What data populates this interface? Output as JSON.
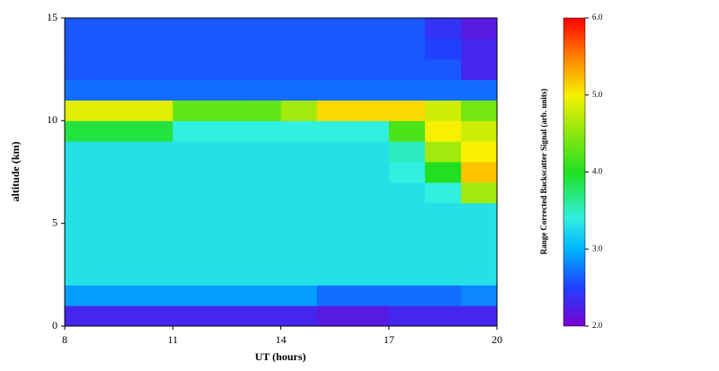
{
  "chart_data": {
    "type": "heatmap",
    "x_label": "UT (hours)",
    "y_label": "altitude (km)",
    "colorbar_label": "Range Corrected Backscatter Signal (arb. units)",
    "x_bins": [
      8,
      9,
      10,
      11,
      12,
      13,
      14,
      15,
      16,
      17,
      18,
      19,
      20
    ],
    "y_bins": [
      0,
      1,
      2,
      3,
      4,
      5,
      6,
      7,
      8,
      9,
      10,
      11,
      12,
      13,
      14,
      15
    ],
    "z": [
      [
        2.3,
        2.3,
        2.3,
        2.3,
        2.3,
        2.3,
        2.3,
        2.2,
        2.2,
        2.3,
        2.3,
        2.3
      ],
      [
        2.9,
        2.9,
        2.9,
        2.9,
        2.9,
        2.9,
        2.9,
        2.7,
        2.7,
        2.7,
        2.7,
        2.8
      ],
      [
        3.3,
        3.3,
        3.3,
        3.3,
        3.3,
        3.3,
        3.3,
        3.3,
        3.3,
        3.3,
        3.3,
        3.3
      ],
      [
        3.3,
        3.3,
        3.3,
        3.3,
        3.3,
        3.3,
        3.3,
        3.3,
        3.3,
        3.3,
        3.3,
        3.3
      ],
      [
        3.3,
        3.3,
        3.3,
        3.3,
        3.3,
        3.3,
        3.3,
        3.3,
        3.3,
        3.3,
        3.3,
        3.3
      ],
      [
        3.3,
        3.3,
        3.3,
        3.3,
        3.3,
        3.3,
        3.3,
        3.3,
        3.3,
        3.3,
        3.3,
        3.3
      ],
      [
        3.3,
        3.3,
        3.3,
        3.3,
        3.3,
        3.3,
        3.3,
        3.3,
        3.3,
        3.3,
        3.4,
        4.6
      ],
      [
        3.3,
        3.3,
        3.3,
        3.3,
        3.3,
        3.3,
        3.3,
        3.3,
        3.3,
        3.4,
        4.0,
        5.2
      ],
      [
        3.3,
        3.3,
        3.3,
        3.3,
        3.3,
        3.3,
        3.3,
        3.3,
        3.3,
        3.5,
        4.6,
        5.0
      ],
      [
        3.9,
        3.9,
        3.9,
        3.4,
        3.4,
        3.4,
        3.4,
        3.4,
        3.4,
        4.2,
        5.0,
        4.8
      ],
      [
        4.9,
        4.9,
        4.9,
        4.3,
        4.3,
        4.3,
        4.6,
        5.1,
        5.1,
        5.1,
        4.8,
        4.4
      ],
      [
        2.7,
        2.7,
        2.7,
        2.7,
        2.7,
        2.7,
        2.7,
        2.7,
        2.7,
        2.7,
        2.7,
        2.7
      ],
      [
        2.6,
        2.6,
        2.6,
        2.6,
        2.6,
        2.6,
        2.6,
        2.6,
        2.6,
        2.6,
        2.6,
        2.3
      ],
      [
        2.6,
        2.6,
        2.6,
        2.6,
        2.6,
        2.6,
        2.6,
        2.6,
        2.6,
        2.6,
        2.5,
        2.3
      ],
      [
        2.6,
        2.6,
        2.6,
        2.6,
        2.6,
        2.6,
        2.6,
        2.6,
        2.6,
        2.6,
        2.4,
        2.2
      ]
    ],
    "xlim": [
      8,
      20
    ],
    "xticks": [
      8,
      11,
      14,
      17,
      20
    ],
    "ylim": [
      0,
      15
    ],
    "yticks": [
      0,
      5,
      10,
      15
    ],
    "zlim": [
      2,
      6
    ],
    "zticks": [
      {
        "value": 2,
        "label": "2.0"
      },
      {
        "value": 3,
        "label": "3.0"
      },
      {
        "value": 4,
        "label": "4.0"
      },
      {
        "value": 5,
        "label": "5.0"
      },
      {
        "value": 6,
        "label": "6.0"
      }
    ],
    "colorscale": [
      [
        2,
        "#7a00d0"
      ],
      [
        2.5,
        "#2040ff"
      ],
      [
        3,
        "#00b4ff"
      ],
      [
        3.4,
        "#30f0e0"
      ],
      [
        4,
        "#20e020"
      ],
      [
        5,
        "#f8f000"
      ],
      [
        5.5,
        "#ff8000"
      ],
      [
        6,
        "#ff0000"
      ]
    ]
  }
}
